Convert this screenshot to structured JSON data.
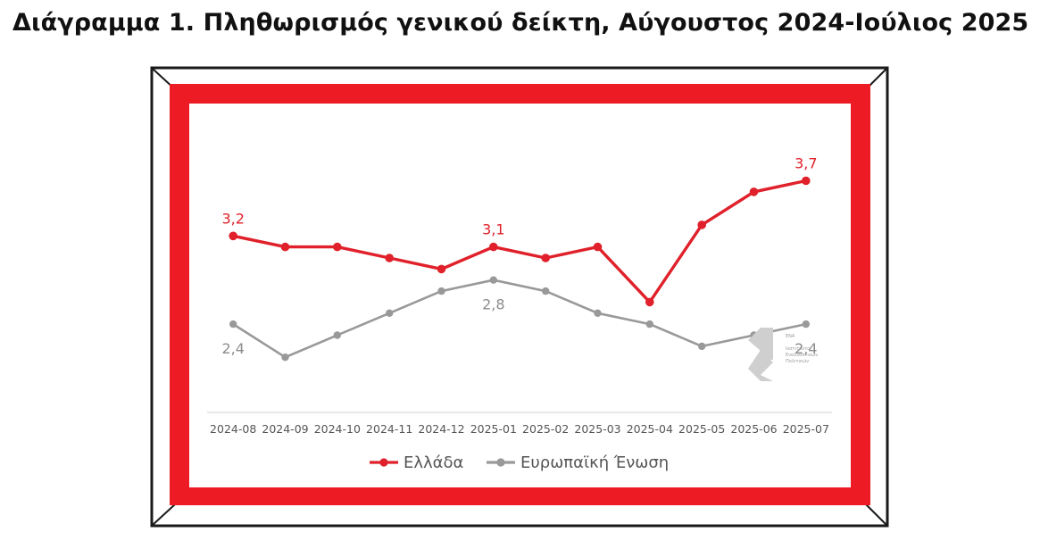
{
  "page": {
    "title": "Διάγραμμα 1. Πληθωρισμός γενικού δείκτη, Αύγουστος 2024-Ιούλιος 2025"
  },
  "colors": {
    "frame_red": "#ED1C24",
    "frame_black": "#1A1A1A",
    "greece": "#E0202A",
    "eu": "#999999",
    "axis_line": "#D9D9D9",
    "label_text": "#555555"
  },
  "logo": {
    "icon": "ena-institute-logo",
    "lines": [
      "ΕΝΑ",
      "Ινστιτούτο",
      "Εναλλακτικών",
      "Πολιτικών"
    ]
  },
  "chart_data": {
    "type": "line",
    "title": "",
    "xlabel": "",
    "ylabel": "",
    "ylim": [
      1.6,
      4.4
    ],
    "grid": false,
    "legend_position": "bottom",
    "categories": [
      "2024-08",
      "2024-09",
      "2024-10",
      "2024-11",
      "2024-12",
      "2025-01",
      "2025-02",
      "2025-03",
      "2025-04",
      "2025-05",
      "2025-06",
      "2025-07"
    ],
    "series": [
      {
        "name": "Ελλάδα",
        "color": "#E0202A",
        "values": [
          3.2,
          3.1,
          3.1,
          3.0,
          2.9,
          3.1,
          3.0,
          3.1,
          2.6,
          3.3,
          3.6,
          3.7
        ],
        "data_labels": [
          {
            "index": 0,
            "text": "3,2"
          },
          {
            "index": 5,
            "text": "3,1"
          },
          {
            "index": 11,
            "text": "3,7"
          }
        ]
      },
      {
        "name": "Ευρωπαϊκή Ένωση",
        "color": "#999999",
        "values": [
          2.4,
          2.1,
          2.3,
          2.5,
          2.7,
          2.8,
          2.7,
          2.5,
          2.4,
          2.2,
          2.3,
          2.4
        ],
        "data_labels": [
          {
            "index": 0,
            "text": "2,4"
          },
          {
            "index": 5,
            "text": "2,8"
          },
          {
            "index": 11,
            "text": "2,4"
          }
        ]
      }
    ]
  }
}
